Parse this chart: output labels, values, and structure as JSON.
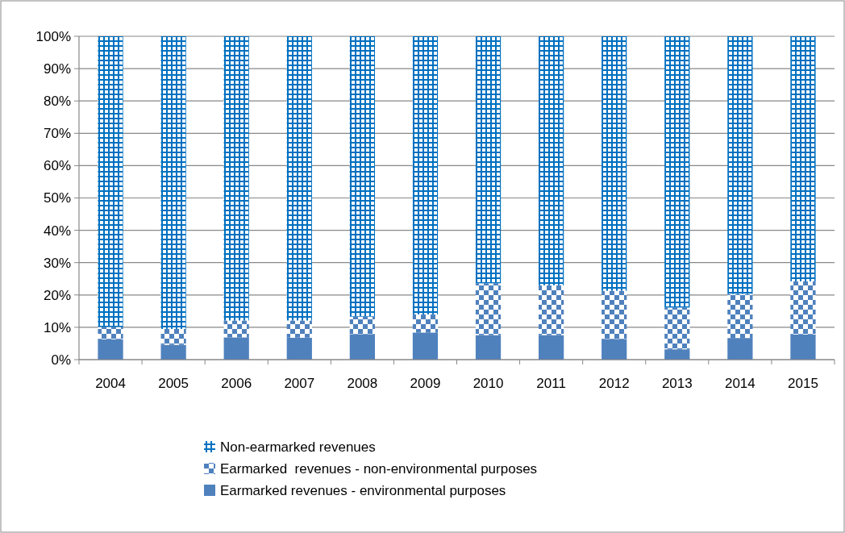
{
  "chart_data": {
    "type": "bar",
    "stacked": true,
    "categories": [
      "2004",
      "2005",
      "2006",
      "2007",
      "2008",
      "2009",
      "2010",
      "2011",
      "2012",
      "2013",
      "2014",
      "2015"
    ],
    "series": [
      {
        "name": "Earmarked revenues - environmental purposes",
        "color": "#4f81bd",
        "values": [
          6.3,
          4.6,
          6.9,
          6.8,
          7.9,
          8.4,
          7.6,
          7.6,
          6.4,
          3.2,
          6.7,
          7.8
        ]
      },
      {
        "name": "Earmarked  revenues - non-environmental purposes",
        "color": "#4f81bd",
        "values": [
          3.8,
          4.9,
          5.2,
          5.3,
          5.4,
          5.6,
          16.0,
          15.4,
          14.9,
          12.9,
          13.6,
          16.4
        ]
      },
      {
        "name": "Non-earmarked revenues",
        "color": "#0070c0",
        "values": [
          89.9,
          90.5,
          87.9,
          87.9,
          86.7,
          86.0,
          76.4,
          77.0,
          78.7,
          83.9,
          79.7,
          75.8
        ]
      }
    ],
    "ylim": [
      0,
      100
    ],
    "yticks": [
      {
        "value": 0,
        "label": "0%"
      },
      {
        "value": 10,
        "label": "10%"
      },
      {
        "value": 20,
        "label": "20%"
      },
      {
        "value": 30,
        "label": "30%"
      },
      {
        "value": 40,
        "label": "40%"
      },
      {
        "value": 50,
        "label": "50%"
      },
      {
        "value": 60,
        "label": "60%"
      },
      {
        "value": 70,
        "label": "70%"
      },
      {
        "value": 80,
        "label": "80%"
      },
      {
        "value": 90,
        "label": "90%"
      },
      {
        "value": 100,
        "label": "100%"
      }
    ],
    "grid": "y",
    "legend": "bottom"
  }
}
